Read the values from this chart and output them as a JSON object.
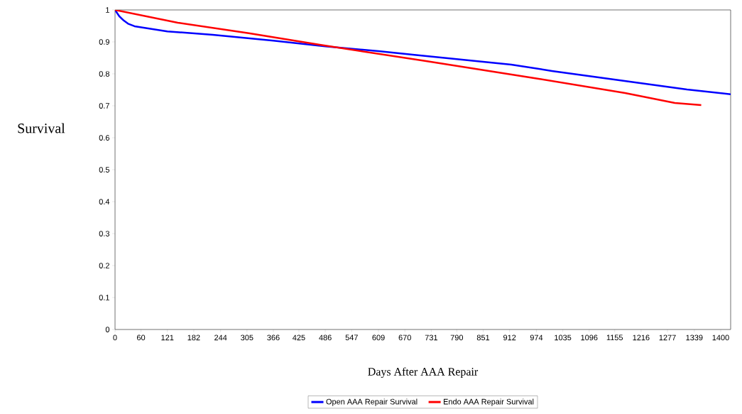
{
  "chart_data": {
    "type": "line",
    "xlabel": "Days After AAA Repair",
    "ylabel": "Survival",
    "xlim": [
      0,
      1423
    ],
    "ylim": [
      0,
      1
    ],
    "xticks": [
      0,
      60,
      121,
      182,
      244,
      305,
      366,
      425,
      486,
      547,
      609,
      670,
      731,
      790,
      851,
      912,
      974,
      1035,
      1096,
      1155,
      1216,
      1277,
      1339,
      1400
    ],
    "yticks": [
      0,
      0.1,
      0.2,
      0.3,
      0.4,
      0.5,
      0.6,
      0.7,
      0.8,
      0.9,
      1
    ],
    "grid": false,
    "legend": "bottom",
    "marker": "none",
    "line_style": "solid",
    "series": [
      {
        "name": "Open AAA Repair Survival",
        "color": "#0000ff",
        "x": [
          0,
          10,
          20,
          30,
          45,
          121,
          226,
          366,
          486,
          609,
          688,
          916,
          1010,
          1322,
          1423
        ],
        "values": [
          1.0,
          0.98,
          0.967,
          0.957,
          0.949,
          0.933,
          0.922,
          0.904,
          0.886,
          0.871,
          0.86,
          0.829,
          0.809,
          0.751,
          0.736
        ]
      },
      {
        "name": "Endo AAA Repair Survival",
        "color": "#ff0000",
        "x": [
          0,
          145,
          309,
          473,
          719,
          982,
          1179,
          1294,
          1355
        ],
        "values": [
          1.0,
          0.96,
          0.927,
          0.891,
          0.84,
          0.784,
          0.74,
          0.709,
          0.702
        ]
      }
    ]
  }
}
